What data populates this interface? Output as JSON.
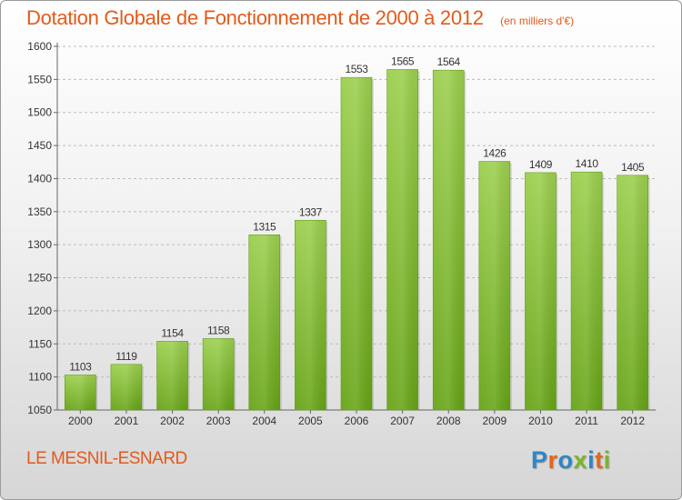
{
  "header": {
    "title": "Dotation Globale de Fonctionnement de 2000 à 2012",
    "subtitle": "(en milliers d'€)"
  },
  "footer": {
    "commune": "LE MESNIL-ESNARD",
    "logo_text": "Proxiti"
  },
  "colors": {
    "title": "#e35a1a",
    "bar_light": "#9ccf4e",
    "bar_dark": "#66a416",
    "logo_letters": [
      "#2e86c8",
      "#e8641b",
      "#2e86c8",
      "#7ab52a",
      "#2e86c8",
      "#e8641b",
      "#7ab52a"
    ]
  },
  "chart_data": {
    "type": "bar",
    "title": "Dotation Globale de Fonctionnement de 2000 à 2012",
    "categories": [
      "2000",
      "2001",
      "2002",
      "2003",
      "2004",
      "2005",
      "2006",
      "2007",
      "2008",
      "2009",
      "2010",
      "2011",
      "2012"
    ],
    "values": [
      1103,
      1119,
      1154,
      1158,
      1315,
      1337,
      1553,
      1565,
      1564,
      1426,
      1409,
      1410,
      1405
    ],
    "ylim": [
      1050,
      1600
    ],
    "yticks": [
      1050,
      1100,
      1150,
      1200,
      1250,
      1300,
      1350,
      1400,
      1450,
      1500,
      1550,
      1600
    ],
    "grid": true
  }
}
